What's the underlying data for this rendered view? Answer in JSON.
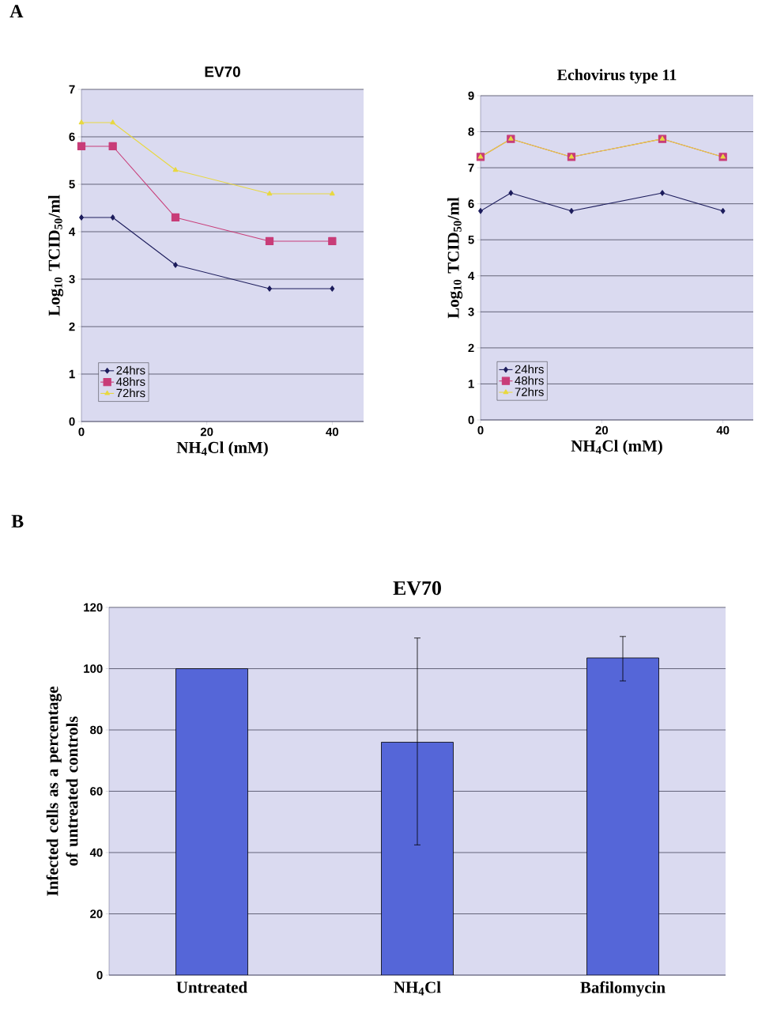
{
  "chart_data": [
    {
      "type": "line",
      "title": "EV70",
      "xlabel": "NH$_{4}$Cl (mM)",
      "ylabel": "Log$_{10}$ TCID$_{50}$/ml",
      "annotations": [
        "A"
      ],
      "x": [
        0,
        5,
        15,
        30,
        40
      ],
      "xlim": [
        0,
        45
      ],
      "xticks": [
        0,
        20,
        40
      ],
      "ylim": [
        0,
        7
      ],
      "yticks": [
        0,
        1,
        2,
        3,
        4,
        5,
        6,
        7
      ],
      "grid": "y",
      "legend": "bottom left",
      "series": [
        {
          "name": "24hrs",
          "color": "#1c1c5c",
          "marker": "diamond",
          "values": [
            4.3,
            4.3,
            3.3,
            2.8,
            2.8
          ]
        },
        {
          "name": "48hrs",
          "color": "#c83c78",
          "marker": "square",
          "values": [
            5.8,
            5.8,
            4.3,
            3.8,
            3.8
          ]
        },
        {
          "name": "72hrs",
          "color": "#e8d840",
          "marker": "triangle",
          "values": [
            6.3,
            6.3,
            5.3,
            4.8,
            4.8
          ]
        }
      ]
    },
    {
      "type": "line",
      "title": "Echovirus type 11",
      "xlabel": "NH$_{4}$Cl (mM)",
      "ylabel": "Log$_{10}$ TCID$_{50}$/ml",
      "x": [
        0,
        5,
        15,
        30,
        40
      ],
      "xlim": [
        0,
        45
      ],
      "xticks": [
        0,
        20,
        40
      ],
      "ylim": [
        0,
        9
      ],
      "yticks": [
        0,
        1,
        2,
        3,
        4,
        5,
        6,
        7,
        8,
        9
      ],
      "grid": "y",
      "legend": "bottom left",
      "series": [
        {
          "name": "24hrs",
          "color": "#1c1c5c",
          "marker": "diamond",
          "values": [
            5.8,
            6.3,
            5.8,
            6.3,
            5.8
          ]
        },
        {
          "name": "48hrs",
          "color": "#c83c78",
          "marker": "square",
          "values": [
            7.3,
            7.8,
            7.3,
            7.8,
            7.3
          ]
        },
        {
          "name": "72hrs",
          "color": "#e8d840",
          "marker": "triangle",
          "values": [
            7.3,
            7.8,
            7.3,
            7.8,
            7.3
          ]
        }
      ]
    },
    {
      "type": "bar",
      "title": "EV70",
      "ylabel": "Infected cells as a  percentage of untreated controls",
      "annotations": [
        "B"
      ],
      "categories": [
        "Untreated",
        "NH$_{4}$Cl",
        "Bafilomycin"
      ],
      "values": [
        100,
        76,
        103.5
      ],
      "color": "#5566d8",
      "errors": [
        null,
        [
          42.5,
          110
        ],
        [
          96,
          110.5
        ]
      ],
      "ylim": [
        0,
        120
      ],
      "yticks": [
        0,
        20,
        40,
        60,
        80,
        100,
        120
      ],
      "grid": "y"
    }
  ]
}
